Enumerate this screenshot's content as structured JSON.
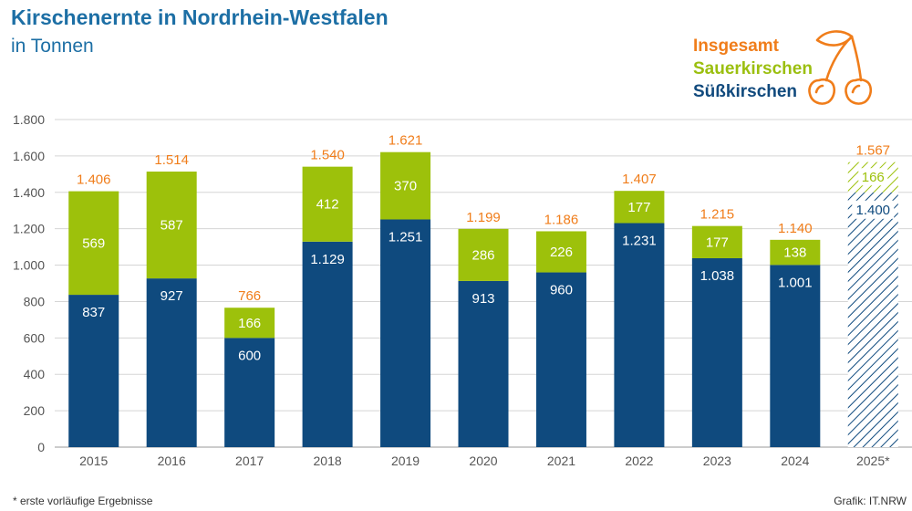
{
  "title": "Kirschenernte in Nordrhein-Westfalen",
  "subtitle": "in Tonnen",
  "legend": [
    {
      "label": "Insgesamt",
      "color": "#f07d1a"
    },
    {
      "label": "Sauerkirschen",
      "color": "#9bbf0f"
    },
    {
      "label": "Süßkirschen",
      "color": "#114a7d"
    }
  ],
  "colors": {
    "suess": "#0f4a7e",
    "sauer": "#9dc10b",
    "total": "#f07d1a",
    "axis_text": "#555555",
    "grid": "#d5d5d5",
    "title": "#1d6fa5"
  },
  "footnote": "*  erste vorläufige Ergebnisse",
  "source": "Grafik: IT.NRW",
  "icon": "cherry-icon",
  "chart_data": {
    "type": "bar",
    "stacked": true,
    "categories": [
      "2015",
      "2016",
      "2017",
      "2018",
      "2019",
      "2020",
      "2021",
      "2022",
      "2023",
      "2024",
      "2025*"
    ],
    "series": [
      {
        "name": "Süßkirschen",
        "values": [
          837,
          927,
          600,
          1129,
          1251,
          913,
          960,
          1231,
          1038,
          1001,
          1400
        ],
        "labels": [
          "837",
          "927",
          "600",
          "1.129",
          "1.251",
          "913",
          "960",
          "1.231",
          "1.038",
          "1.001",
          "1.400"
        ]
      },
      {
        "name": "Sauerkirschen",
        "values": [
          569,
          587,
          166,
          412,
          370,
          286,
          226,
          177,
          177,
          138,
          166
        ],
        "labels": [
          "569",
          "587",
          "166",
          "412",
          "370",
          "286",
          "226",
          "177",
          "177",
          "138",
          "166"
        ]
      }
    ],
    "totals": {
      "name": "Insgesamt",
      "values": [
        1406,
        1514,
        766,
        1540,
        1621,
        1199,
        1186,
        1407,
        1215,
        1140,
        1567
      ],
      "labels": [
        "1.406",
        "1.514",
        "766",
        "1.540",
        "1.621",
        "1.199",
        "1.186",
        "1.407",
        "1.215",
        "1.140",
        "1.567"
      ]
    },
    "preliminary": [
      false,
      false,
      false,
      false,
      false,
      false,
      false,
      false,
      false,
      false,
      true
    ],
    "ylim": [
      0,
      1800
    ],
    "yticks": [
      0,
      200,
      400,
      600,
      800,
      1000,
      1200,
      1400,
      1600,
      1800
    ],
    "ytick_labels": [
      "0",
      "200",
      "400",
      "600",
      "800",
      "1.000",
      "1.200",
      "1.400",
      "1.600",
      "1.800"
    ],
    "grid": true,
    "xlabel": "",
    "ylabel": ""
  }
}
